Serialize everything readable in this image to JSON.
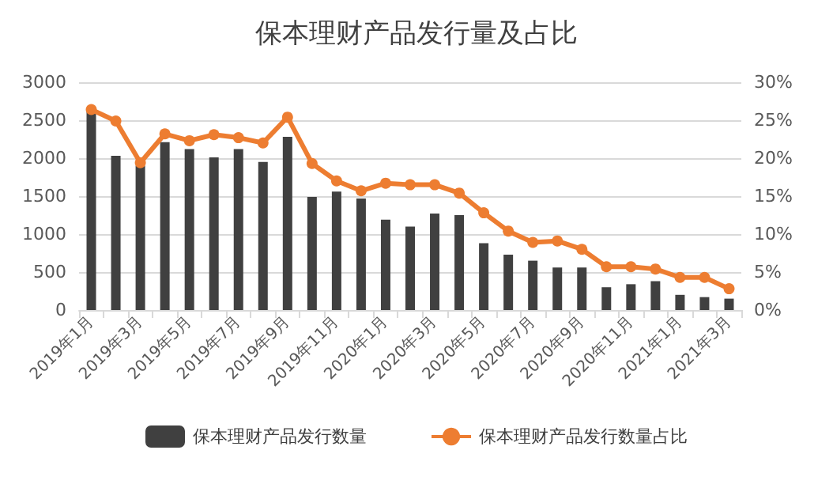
{
  "chart_data": {
    "type": "bar",
    "title": "保本理财产品发行量及占比",
    "categories": [
      "2019年1月",
      null,
      "2019年3月",
      null,
      "2019年5月",
      null,
      "2019年7月",
      null,
      "2019年9月",
      null,
      "2019年11月",
      null,
      "2020年1月",
      null,
      "2020年3月",
      null,
      "2020年5月",
      null,
      "2020年7月",
      null,
      "2020年9月",
      null,
      "2020年11月",
      null,
      "2021年1月",
      null,
      "2021年3月"
    ],
    "series": [
      {
        "name": "保本理财产品发行数量",
        "color": "#404040",
        "values": [
          2650,
          2030,
          1900,
          2210,
          2120,
          2010,
          2120,
          1950,
          2280,
          1490,
          1560,
          1470,
          1190,
          1100,
          1270,
          1250,
          880,
          730,
          650,
          560,
          560,
          300,
          340,
          380,
          200,
          170,
          150
        ]
      },
      {
        "name": "保本理财产品发行数量占比",
        "type": "line",
        "axis": "y2",
        "color": "#ed7d31",
        "marker": "circle",
        "values": [
          26.4,
          24.9,
          19.4,
          23.2,
          22.3,
          23.1,
          22.7,
          22.0,
          25.4,
          19.3,
          17.0,
          15.7,
          16.7,
          16.5,
          16.5,
          15.4,
          12.8,
          10.4,
          8.9,
          9.1,
          8.0,
          5.7,
          5.7,
          5.4,
          4.3,
          4.3,
          2.8
        ]
      }
    ],
    "ylim": [
      0,
      3000
    ],
    "yticks": [
      0,
      500,
      1000,
      1500,
      2000,
      2500,
      3000
    ],
    "y2lim": [
      0,
      30
    ],
    "y2ticks": [
      {
        "value": 0,
        "label": "0%"
      },
      {
        "value": 5,
        "label": "5%"
      },
      {
        "value": 10,
        "label": "10%"
      },
      {
        "value": 15,
        "label": "15%"
      },
      {
        "value": 20,
        "label": "20%"
      },
      {
        "value": 25,
        "label": "25%"
      },
      {
        "value": 30,
        "label": "30%"
      }
    ],
    "grid": "y",
    "legend": "bottom"
  }
}
